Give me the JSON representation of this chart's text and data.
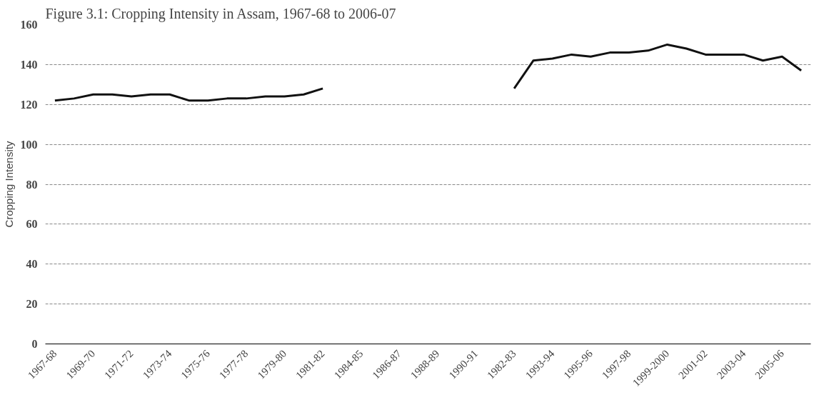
{
  "chart_data": {
    "type": "line",
    "title": "Figure 3.1: Cropping Intensity in Assam, 1967-68 to 2006-07",
    "ylabel": "Cropping Intensity",
    "categories": [
      "1967-68",
      null,
      "1969-70",
      null,
      "1971-72",
      null,
      "1973-74",
      null,
      "1975-76",
      null,
      "1977-78",
      null,
      "1979-80",
      null,
      "1981-82",
      null,
      "1984-85",
      null,
      "1986-87",
      null,
      "1988-89",
      null,
      "1990-91",
      null,
      "1982-83",
      null,
      "1993-94",
      null,
      "1995-96",
      null,
      "1997-98",
      null,
      "1999-2000",
      null,
      "2001-02",
      null,
      "2003-04",
      null,
      "2005-06",
      null
    ],
    "series": [
      {
        "color": "#111111",
        "values": [
          122,
          123,
          125,
          125,
          124,
          125,
          125,
          122,
          122,
          123,
          123,
          124,
          124,
          125,
          128,
          null,
          null,
          null,
          null,
          null,
          null,
          null,
          null,
          null,
          128,
          142,
          143,
          145,
          144,
          146,
          146,
          147,
          150,
          148,
          145,
          145,
          145,
          142,
          144,
          137
        ]
      }
    ],
    "ylim": [
      0,
      160
    ],
    "yticks": [
      0,
      20,
      40,
      60,
      80,
      100,
      120,
      140,
      160
    ],
    "grid": "y",
    "line_style": "solid",
    "marker": "none"
  }
}
